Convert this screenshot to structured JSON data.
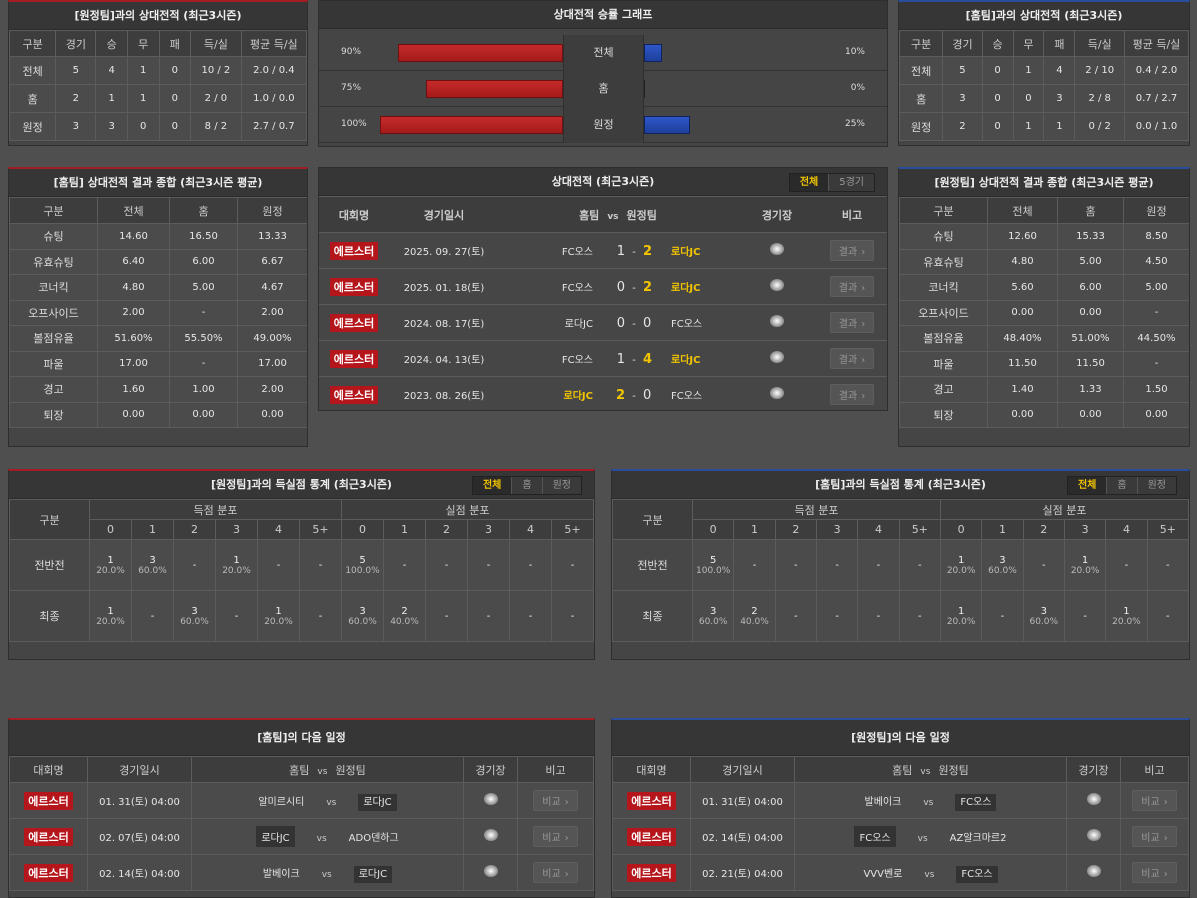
{
  "colors": {
    "away_accent": "#a51d22",
    "home_accent": "#2b4d9e",
    "win": "#f3c500",
    "league": "#b5161c"
  },
  "h2h_away": {
    "title": "[원정팀]과의 상대전적 (최근3시즌)",
    "headers": [
      "구분",
      "경기",
      "승",
      "무",
      "패",
      "득/실",
      "평균 득/실"
    ],
    "rows": [
      [
        "전체",
        "5",
        "4",
        "1",
        "0",
        "10 / 2",
        "2.0 / 0.4"
      ],
      [
        "홈",
        "2",
        "1",
        "1",
        "0",
        "2 / 0",
        "1.0 / 0.0"
      ],
      [
        "원정",
        "3",
        "3",
        "0",
        "0",
        "8 / 2",
        "2.7 / 0.7"
      ]
    ]
  },
  "h2h_home": {
    "title": "[홈팀]과의 상대전적 (최근3시즌)",
    "headers": [
      "구분",
      "경기",
      "승",
      "무",
      "패",
      "득/실",
      "평균 득/실"
    ],
    "rows": [
      [
        "전체",
        "5",
        "0",
        "1",
        "4",
        "2 / 10",
        "0.4 / 2.0"
      ],
      [
        "홈",
        "3",
        "0",
        "0",
        "3",
        "2 / 8",
        "0.7 / 2.7"
      ],
      [
        "원정",
        "2",
        "0",
        "1",
        "1",
        "0 / 2",
        "0.0 / 1.0"
      ]
    ]
  },
  "graph": {
    "title": "상대전적 승률 그래프",
    "rows": [
      {
        "label": "전체",
        "left": 90,
        "right": 10,
        "left_text": "90%",
        "right_text": "10%"
      },
      {
        "label": "홈",
        "left": 75,
        "right": 0,
        "left_text": "75%",
        "right_text": "0%"
      },
      {
        "label": "원정",
        "left": 100,
        "right": 25,
        "left_text": "100%",
        "right_text": "25%"
      }
    ]
  },
  "stats_home": {
    "title": "[홈팀] 상대전적 결과 종합 (최근3시즌 평균)",
    "headers": [
      "구분",
      "전체",
      "홈",
      "원정"
    ],
    "rows": [
      [
        "슈팅",
        "14.60",
        "16.50",
        "13.33"
      ],
      [
        "유효슈팅",
        "6.40",
        "6.00",
        "6.67"
      ],
      [
        "코너킥",
        "4.80",
        "5.00",
        "4.67"
      ],
      [
        "오프사이드",
        "2.00",
        "-",
        "2.00"
      ],
      [
        "볼점유율",
        "51.60%",
        "55.50%",
        "49.00%"
      ],
      [
        "파울",
        "17.00",
        "-",
        "17.00"
      ],
      [
        "경고",
        "1.60",
        "1.00",
        "2.00"
      ],
      [
        "퇴장",
        "0.00",
        "0.00",
        "0.00"
      ]
    ]
  },
  "stats_away": {
    "title": "[원정팀] 상대전적 결과 종합 (최근3시즌 평균)",
    "headers": [
      "구분",
      "전체",
      "홈",
      "원정"
    ],
    "rows": [
      [
        "슈팅",
        "12.60",
        "15.33",
        "8.50"
      ],
      [
        "유효슈팅",
        "4.80",
        "5.00",
        "4.50"
      ],
      [
        "코너킥",
        "5.60",
        "6.00",
        "5.00"
      ],
      [
        "오프사이드",
        "0.00",
        "0.00",
        "-"
      ],
      [
        "볼점유율",
        "48.40%",
        "51.00%",
        "44.50%"
      ],
      [
        "파울",
        "11.50",
        "11.50",
        "-"
      ],
      [
        "경고",
        "1.40",
        "1.33",
        "1.50"
      ],
      [
        "퇴장",
        "0.00",
        "0.00",
        "0.00"
      ]
    ]
  },
  "recent": {
    "title": "상대전적 (최근3시즌)",
    "tabs": [
      "전체",
      "5경기"
    ],
    "headers": {
      "league": "대회명",
      "date": "경기일시",
      "home": "홈팀",
      "vs": "vs",
      "away": "원정팀",
      "stadium": "경기장",
      "note": "비고"
    },
    "rows": [
      {
        "league": "에르스터",
        "date": "2025. 09. 27(토)",
        "home": "FC오스",
        "hs": "1",
        "as": "2",
        "away": "로다JC",
        "winner": "away",
        "btn": "결과"
      },
      {
        "league": "에르스터",
        "date": "2025. 01. 18(토)",
        "home": "FC오스",
        "hs": "0",
        "as": "2",
        "away": "로다JC",
        "winner": "away",
        "btn": "결과"
      },
      {
        "league": "에르스터",
        "date": "2024. 08. 17(토)",
        "home": "로다JC",
        "hs": "0",
        "as": "0",
        "away": "FC오스",
        "winner": "none",
        "btn": "결과"
      },
      {
        "league": "에르스터",
        "date": "2024. 04. 13(토)",
        "home": "FC오스",
        "hs": "1",
        "as": "4",
        "away": "로다JC",
        "winner": "away",
        "btn": "결과"
      },
      {
        "league": "에르스터",
        "date": "2023. 08. 26(토)",
        "home": "로다JC",
        "hs": "2",
        "as": "0",
        "away": "FC오스",
        "winner": "home",
        "btn": "결과"
      }
    ]
  },
  "goals_away": {
    "title": "[원정팀]과의 득실점 통계 (최근3시즌)",
    "tabs": [
      "전체",
      "홈",
      "원정"
    ],
    "label": "구분",
    "scored": "득점 분포",
    "conceded": "실점 분포",
    "cols": [
      "0",
      "1",
      "2",
      "3",
      "4",
      "5+",
      "0",
      "1",
      "2",
      "3",
      "4",
      "5+"
    ],
    "rows": [
      {
        "label": "전반전",
        "cells": [
          [
            "1",
            "20.0%"
          ],
          [
            "3",
            "60.0%"
          ],
          [
            "-",
            ""
          ],
          [
            "1",
            "20.0%"
          ],
          [
            "-",
            ""
          ],
          [
            "-",
            ""
          ],
          [
            "5",
            "100.0%"
          ],
          [
            "-",
            ""
          ],
          [
            "-",
            ""
          ],
          [
            "-",
            ""
          ],
          [
            "-",
            ""
          ],
          [
            "-",
            ""
          ]
        ]
      },
      {
        "label": "최종",
        "cells": [
          [
            "1",
            "20.0%"
          ],
          [
            "-",
            ""
          ],
          [
            "3",
            "60.0%"
          ],
          [
            "-",
            ""
          ],
          [
            "1",
            "20.0%"
          ],
          [
            "-",
            ""
          ],
          [
            "3",
            "60.0%"
          ],
          [
            "2",
            "40.0%"
          ],
          [
            "-",
            ""
          ],
          [
            "-",
            ""
          ],
          [
            "-",
            ""
          ],
          [
            "-",
            ""
          ]
        ]
      }
    ]
  },
  "goals_home": {
    "title": "[홈팀]과의 득실점 통계 (최근3시즌)",
    "tabs": [
      "전체",
      "홈",
      "원정"
    ],
    "label": "구분",
    "scored": "득점 분포",
    "conceded": "실점 분포",
    "cols": [
      "0",
      "1",
      "2",
      "3",
      "4",
      "5+",
      "0",
      "1",
      "2",
      "3",
      "4",
      "5+"
    ],
    "rows": [
      {
        "label": "전반전",
        "cells": [
          [
            "5",
            "100.0%"
          ],
          [
            "-",
            ""
          ],
          [
            "-",
            ""
          ],
          [
            "-",
            ""
          ],
          [
            "-",
            ""
          ],
          [
            "-",
            ""
          ],
          [
            "1",
            "20.0%"
          ],
          [
            "3",
            "60.0%"
          ],
          [
            "-",
            ""
          ],
          [
            "1",
            "20.0%"
          ],
          [
            "-",
            ""
          ],
          [
            "-",
            ""
          ]
        ]
      },
      {
        "label": "최종",
        "cells": [
          [
            "3",
            "60.0%"
          ],
          [
            "2",
            "40.0%"
          ],
          [
            "-",
            ""
          ],
          [
            "-",
            ""
          ],
          [
            "-",
            ""
          ],
          [
            "-",
            ""
          ],
          [
            "1",
            "20.0%"
          ],
          [
            "-",
            ""
          ],
          [
            "3",
            "60.0%"
          ],
          [
            "-",
            ""
          ],
          [
            "1",
            "20.0%"
          ],
          [
            "-",
            ""
          ]
        ]
      }
    ]
  },
  "sched_home": {
    "title": "[홈팀]의 다음 일정",
    "headers": {
      "league": "대회명",
      "date": "경기일시",
      "home": "홈팀",
      "vs": "vs",
      "away": "원정팀",
      "stadium": "경기장",
      "note": "비고"
    },
    "rows": [
      {
        "league": "에르스터",
        "date": "01. 31(토) 04:00",
        "home": "알미르시티",
        "away": "로다JC",
        "team": "away",
        "vs": "vs",
        "btn": "비교"
      },
      {
        "league": "에르스터",
        "date": "02. 07(토) 04:00",
        "home": "로다JC",
        "away": "ADO덴하그",
        "team": "home",
        "vs": "vs",
        "btn": "비교"
      },
      {
        "league": "에르스터",
        "date": "02. 14(토) 04:00",
        "home": "발베이크",
        "away": "로다JC",
        "team": "away",
        "vs": "vs",
        "btn": "비교"
      }
    ]
  },
  "sched_away": {
    "title": "[원정팀]의 다음 일정",
    "headers": {
      "league": "대회명",
      "date": "경기일시",
      "home": "홈팀",
      "vs": "vs",
      "away": "원정팀",
      "stadium": "경기장",
      "note": "비고"
    },
    "rows": [
      {
        "league": "에르스터",
        "date": "01. 31(토) 04:00",
        "home": "발베이크",
        "away": "FC오스",
        "team": "away",
        "vs": "vs",
        "btn": "비교"
      },
      {
        "league": "에르스터",
        "date": "02. 14(토) 04:00",
        "home": "FC오스",
        "away": "AZ알크마르2",
        "team": "home",
        "vs": "vs",
        "btn": "비교"
      },
      {
        "league": "에르스터",
        "date": "02. 21(토) 04:00",
        "home": "VVV벤로",
        "away": "FC오스",
        "team": "away",
        "vs": "vs",
        "btn": "비교"
      }
    ]
  }
}
